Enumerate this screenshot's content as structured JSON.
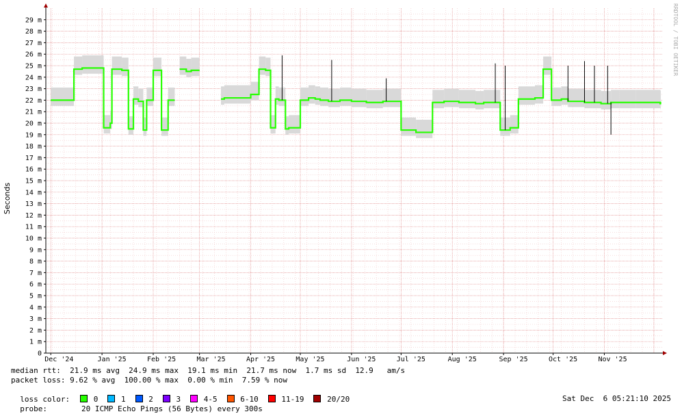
{
  "chart_data": {
    "type": "line",
    "ylabel": "Seconds",
    "ylim": [
      0,
      0.03
    ],
    "y_ticks": [
      "0",
      "1 m",
      "2 m",
      "3 m",
      "4 m",
      "5 m",
      "6 m",
      "7 m",
      "8 m",
      "9 m",
      "10 m",
      "11 m",
      "12 m",
      "13 m",
      "14 m",
      "15 m",
      "16 m",
      "17 m",
      "18 m",
      "19 m",
      "20 m",
      "21 m",
      "22 m",
      "23 m",
      "24 m",
      "25 m",
      "26 m",
      "27 m",
      "28 m",
      "29 m"
    ],
    "x_ticks": [
      "Dec '24",
      "Jan '25",
      "Feb '25",
      "Mar '25",
      "Apr '25",
      "May '25",
      "Jun '25",
      "Jul '25",
      "Aug '25",
      "Sep '25",
      "Oct '25",
      "Nov '25"
    ],
    "x": [
      "2024-12-01",
      "2024-12-15",
      "2024-12-20",
      "2025-01-02",
      "2025-01-06",
      "2025-01-07",
      "2025-01-13",
      "2025-01-17",
      "2025-01-20",
      "2025-01-23",
      "2025-01-26",
      "2025-01-28",
      "2025-02-01",
      "2025-02-06",
      "2025-02-10",
      "2025-02-14",
      "2025-02-17",
      "2025-02-21",
      "2025-02-24",
      "2025-03-01",
      "2025-03-10",
      "2025-03-14",
      "2025-03-16",
      "2025-04-01",
      "2025-04-06",
      "2025-04-10",
      "2025-04-13",
      "2025-04-16",
      "2025-04-18",
      "2025-04-22",
      "2025-04-24",
      "2025-05-01",
      "2025-05-06",
      "2025-05-10",
      "2025-05-13",
      "2025-05-18",
      "2025-05-25",
      "2025-06-01",
      "2025-06-10",
      "2025-06-20",
      "2025-07-01",
      "2025-07-10",
      "2025-07-20",
      "2025-07-27",
      "2025-08-05",
      "2025-08-15",
      "2025-08-20",
      "2025-08-30",
      "2025-09-05",
      "2025-09-10",
      "2025-09-20",
      "2025-09-25",
      "2025-09-30",
      "2025-10-06",
      "2025-10-10",
      "2025-10-20",
      "2025-10-25",
      "2025-10-30",
      "2025-11-05",
      "2025-11-10",
      "2025-11-20",
      "2025-12-05"
    ],
    "series": [
      {
        "values": [
          22.0,
          24.7,
          24.8,
          19.6,
          20.0,
          24.7,
          24.6,
          19.5,
          22.1,
          21.9,
          19.4,
          22.0,
          24.6,
          19.4,
          22.0,
          null,
          24.7,
          24.5,
          24.6,
          null,
          null,
          22.1,
          22.2,
          22.5,
          24.7,
          24.6,
          19.6,
          22.1,
          22.0,
          19.5,
          19.6,
          22.0,
          22.2,
          22.1,
          22.0,
          21.9,
          22.0,
          21.9,
          21.8,
          21.9,
          19.4,
          19.2,
          21.8,
          21.9,
          21.8,
          21.7,
          21.8,
          19.4,
          19.6,
          22.1,
          22.2,
          24.7,
          22.0,
          22.1,
          21.9,
          21.8,
          21.8,
          21.7,
          21.8,
          21.8,
          21.8,
          21.7
        ],
        "spikes": [
          {
            "x": "2025-04-20",
            "value": 25.9
          },
          {
            "x": "2025-05-20",
            "value": 25.5
          },
          {
            "x": "2025-06-22",
            "value": 23.9
          },
          {
            "x": "2025-08-27",
            "value": 25.2
          },
          {
            "x": "2025-09-02",
            "value": 25.0
          },
          {
            "x": "2025-10-10",
            "value": 25.0
          },
          {
            "x": "2025-10-20",
            "value": 25.4
          },
          {
            "x": "2025-10-26",
            "value": 25.0
          },
          {
            "x": "2025-11-03",
            "value": 25.0
          },
          {
            "x": "2025-11-05",
            "value": 19.0
          }
        ]
      }
    ],
    "grid": true
  },
  "credit": "RRDTOOL / TOBI OETIKER",
  "stats": {
    "median_rtt": "median rtt:  21.9 ms avg  24.9 ms max  19.1 ms min  21.7 ms now  1.7 ms sd  12.9   am/s",
    "packet_loss": "packet loss: 9.62 % avg  100.00 % max  0.00 % min  7.59 % now",
    "loss_color_label": "loss color:",
    "loss_colors": [
      {
        "label": "0",
        "color": "#26ff00"
      },
      {
        "label": "1",
        "color": "#00b8ff"
      },
      {
        "label": "2",
        "color": "#0059ff"
      },
      {
        "label": "3",
        "color": "#7e00ff"
      },
      {
        "label": "4-5",
        "color": "#ff00ff"
      },
      {
        "label": "6-10",
        "color": "#ff5500"
      },
      {
        "label": "11-19",
        "color": "#ff0000"
      },
      {
        "label": "20/20",
        "color": "#a10000"
      }
    ],
    "probe_label": "probe:",
    "probe_text": "20 ICMP Echo Pings (56 Bytes) every 300s",
    "timestamp": "Sat Dec  6 05:21:10 2025"
  }
}
